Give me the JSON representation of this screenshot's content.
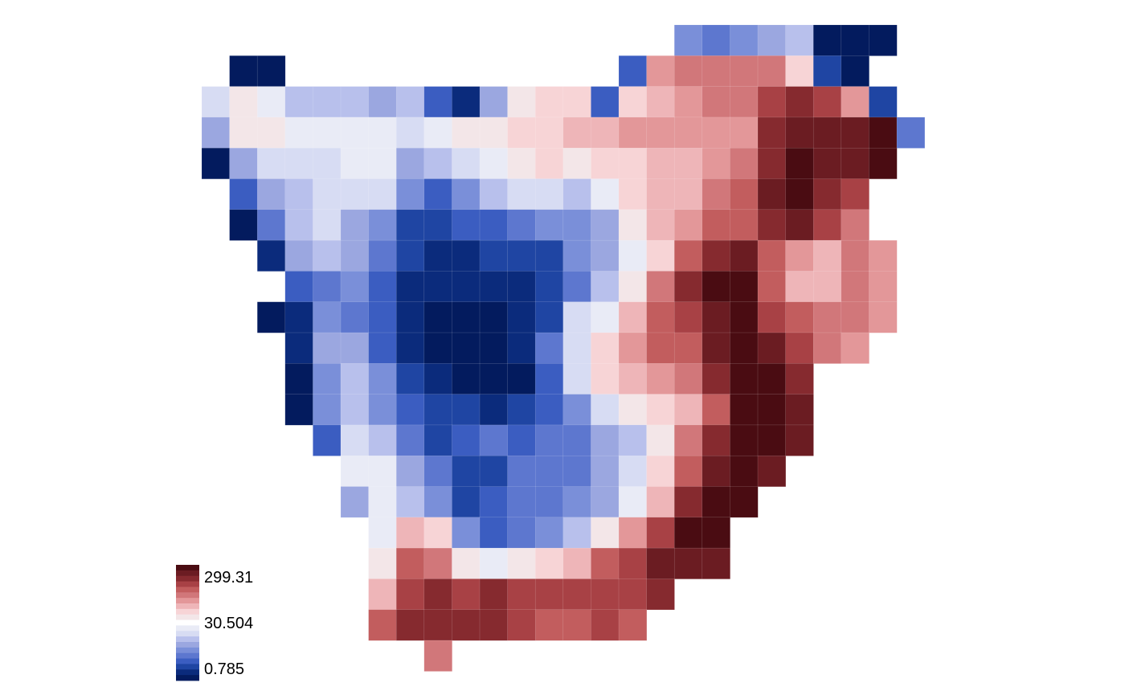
{
  "chart_data": {
    "type": "heatmap",
    "title": "",
    "grid": false,
    "legend": {
      "position": "bottom-left",
      "labels": [
        "299.31",
        "30.504",
        "0.785"
      ],
      "colors": [
        "#ffffff",
        "#f3e6e8",
        "#f7d4d6",
        "#eeb5b8",
        "#e39799",
        "#d1777a",
        "#c25d5e",
        "#a84145",
        "#862a2f",
        "#6b1c22",
        "#4a0c12",
        "#e9ebf6",
        "#d7dcf3",
        "#b8c0ec",
        "#9ba7e0",
        "#7a8fd9",
        "#5d77cf",
        "#3b5dc1",
        "#1f45a3",
        "#0b2b7c",
        "#031b5e"
      ]
    },
    "scale": "log",
    "rows": [
      {
        "r": 0,
        "c0": 17,
        "v": [
          15,
          16,
          15,
          14,
          13,
          20,
          20,
          20
        ]
      },
      {
        "r": 1,
        "c0": 1,
        "v": [
          20,
          20,
          -1,
          -1,
          -1,
          -1,
          -1,
          -1,
          -1,
          -1,
          -1,
          -1,
          -1,
          -1,
          17,
          4,
          5,
          5,
          5,
          5,
          2,
          18,
          20
        ]
      },
      {
        "r": 2,
        "c0": 0,
        "v": [
          12,
          1,
          11,
          13,
          13,
          13,
          14,
          13,
          17,
          19,
          14,
          1,
          2,
          2,
          17,
          2,
          3,
          4,
          5,
          5,
          7,
          8,
          7,
          4,
          18
        ]
      },
      {
        "r": 3,
        "c0": 0,
        "v": [
          14,
          1,
          1,
          11,
          11,
          11,
          11,
          12,
          11,
          1,
          1,
          2,
          2,
          3,
          3,
          4,
          4,
          4,
          4,
          4,
          8,
          9,
          9,
          9,
          10,
          16
        ]
      },
      {
        "r": 4,
        "c0": 0,
        "v": [
          20,
          14,
          12,
          12,
          12,
          11,
          11,
          14,
          13,
          12,
          11,
          1,
          2,
          1,
          2,
          2,
          3,
          3,
          4,
          5,
          8,
          10,
          9,
          9,
          10
        ]
      },
      {
        "r": 5,
        "c0": 1,
        "v": [
          17,
          14,
          13,
          12,
          12,
          12,
          15,
          17,
          15,
          13,
          12,
          12,
          13,
          11,
          2,
          3,
          3,
          5,
          6,
          9,
          10,
          8,
          7
        ]
      },
      {
        "r": 6,
        "c0": 1,
        "v": [
          20,
          16,
          13,
          12,
          14,
          15,
          18,
          18,
          17,
          17,
          16,
          15,
          15,
          14,
          1,
          3,
          4,
          6,
          6,
          8,
          9,
          7,
          5
        ]
      },
      {
        "r": 7,
        "c0": 2,
        "v": [
          19,
          14,
          13,
          14,
          16,
          18,
          19,
          19,
          18,
          18,
          18,
          15,
          14,
          11,
          2,
          6,
          8,
          9,
          6,
          4,
          3,
          5,
          4
        ]
      },
      {
        "r": 8,
        "c0": 3,
        "v": [
          17,
          16,
          15,
          17,
          19,
          19,
          19,
          19,
          19,
          18,
          16,
          13,
          1,
          5,
          8,
          10,
          10,
          6,
          3,
          3,
          5,
          4
        ]
      },
      {
        "r": 9,
        "c0": 2,
        "v": [
          20,
          19,
          15,
          16,
          17,
          19,
          20,
          20,
          20,
          19,
          18,
          12,
          11,
          3,
          6,
          7,
          9,
          10,
          7,
          6,
          5,
          5,
          4
        ]
      },
      {
        "r": 10,
        "c0": 3,
        "v": [
          19,
          14,
          14,
          17,
          19,
          20,
          20,
          20,
          19,
          16,
          12,
          2,
          4,
          6,
          6,
          9,
          10,
          9,
          7,
          5,
          4
        ]
      },
      {
        "r": 11,
        "c0": 3,
        "v": [
          20,
          15,
          13,
          15,
          18,
          19,
          20,
          20,
          20,
          17,
          12,
          2,
          3,
          4,
          5,
          8,
          10,
          10,
          8
        ]
      },
      {
        "r": 12,
        "c0": 3,
        "v": [
          20,
          15,
          13,
          15,
          17,
          18,
          18,
          19,
          18,
          17,
          15,
          12,
          1,
          2,
          3,
          6,
          10,
          10,
          9
        ]
      },
      {
        "r": 13,
        "c0": 4,
        "v": [
          17,
          12,
          13,
          16,
          18,
          17,
          16,
          17,
          16,
          16,
          14,
          13,
          1,
          5,
          8,
          10,
          10,
          9
        ]
      },
      {
        "r": 14,
        "c0": 5,
        "v": [
          11,
          11,
          14,
          16,
          18,
          18,
          16,
          16,
          16,
          14,
          12,
          2,
          6,
          9,
          10,
          9
        ]
      },
      {
        "r": 15,
        "c0": 5,
        "v": [
          14,
          11,
          13,
          15,
          18,
          17,
          16,
          16,
          15,
          14,
          11,
          3,
          8,
          10,
          10
        ]
      },
      {
        "r": 16,
        "c0": 6,
        "v": [
          11,
          3,
          2,
          15,
          17,
          16,
          15,
          13,
          1,
          4,
          7,
          10,
          10
        ]
      },
      {
        "r": 17,
        "c0": 6,
        "v": [
          1,
          6,
          5,
          1,
          11,
          1,
          2,
          3,
          6,
          7,
          9,
          9,
          9
        ]
      },
      {
        "r": 18,
        "c0": 6,
        "v": [
          3,
          7,
          8,
          7,
          8,
          7,
          7,
          7,
          7,
          7,
          8
        ]
      },
      {
        "r": 19,
        "c0": 6,
        "v": [
          6,
          8,
          8,
          8,
          8,
          7,
          6,
          6,
          7,
          6
        ]
      },
      {
        "r": 20,
        "c0": 8,
        "v": [
          5
        ]
      }
    ]
  }
}
